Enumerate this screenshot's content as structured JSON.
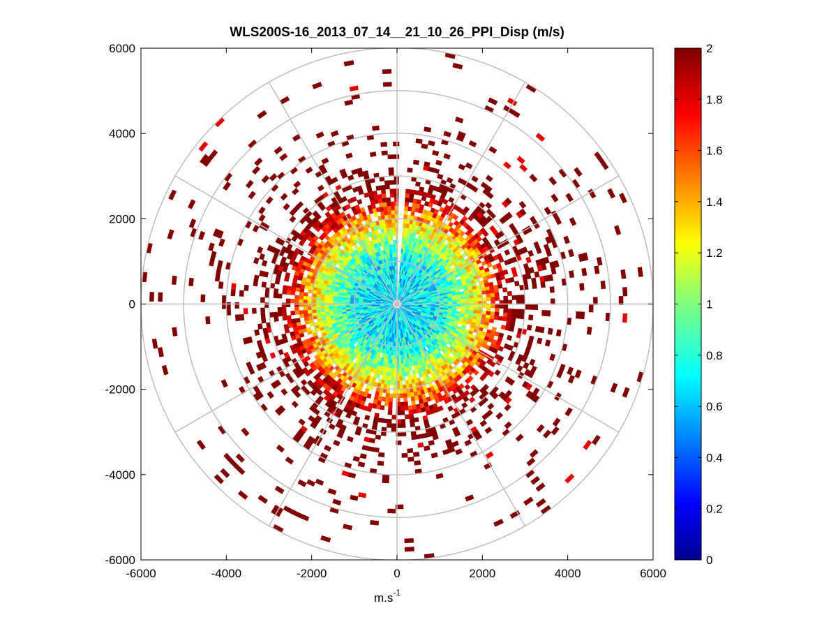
{
  "chart_data": {
    "type": "heatmap",
    "subtype": "polar-ppi-scan",
    "title": "WLS200S-16_2013_07_14__21_10_26_PPI_Disp (m/s)",
    "xlabel": "m.s",
    "xlabel_superscript": "-1",
    "ylabel": "",
    "xlim": [
      -6000,
      6000
    ],
    "ylim": [
      -6000,
      6000
    ],
    "xticks": [
      -6000,
      -4000,
      -2000,
      0,
      2000,
      4000,
      6000
    ],
    "yticks": [
      -6000,
      -4000,
      -2000,
      0,
      2000,
      4000,
      6000
    ],
    "xtick_labels": [
      "-6000",
      "-4000",
      "-2000",
      "0",
      "2000",
      "4000",
      "6000"
    ],
    "ytick_labels": [
      "-6000",
      "-4000",
      "-2000",
      "0",
      "2000",
      "4000",
      "6000"
    ],
    "grid_rings": [
      1000,
      2000,
      3000,
      4000,
      5000,
      6000
    ],
    "grid_spokes_deg": [
      0,
      30,
      60,
      90,
      120,
      150,
      180,
      210,
      240,
      270,
      300,
      330
    ],
    "colorbar": {
      "colormap": "jet",
      "range": [
        0,
        2
      ],
      "ticks": [
        0,
        0.2,
        0.4,
        0.6,
        0.8,
        1,
        1.2,
        1.4,
        1.6,
        1.8,
        2
      ],
      "tick_labels": [
        "0",
        "0.2",
        "0.4",
        "0.6",
        "0.8",
        "1",
        "1.2",
        "1.4",
        "1.6",
        "1.8",
        "2"
      ]
    },
    "radial_profile": {
      "range_m": [
        0,
        500,
        1000,
        1500,
        2000,
        2500,
        3000,
        4000,
        5000,
        6000
      ],
      "typical_value": [
        0.7,
        0.7,
        0.75,
        1.0,
        1.35,
        1.85,
        2.0,
        2.0,
        2.0,
        2.0
      ],
      "coverage": [
        1.0,
        1.0,
        1.0,
        0.98,
        0.92,
        0.7,
        0.35,
        0.1,
        0.06,
        0.04
      ]
    },
    "data_gap_azimuth_deg": [
      0,
      3
    ]
  }
}
